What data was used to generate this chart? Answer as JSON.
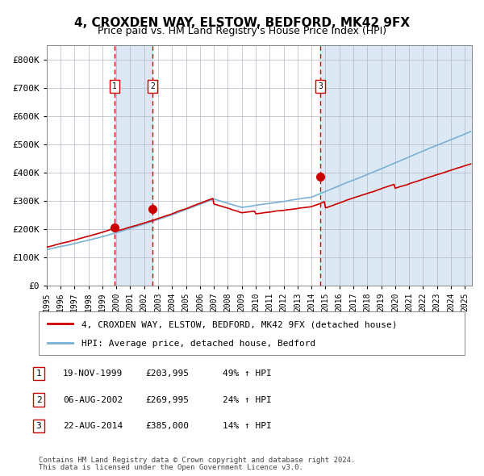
{
  "title": "4, CROXDEN WAY, ELSTOW, BEDFORD, MK42 9FX",
  "subtitle": "Price paid vs. HM Land Registry's House Price Index (HPI)",
  "legend_line1": "4, CROXDEN WAY, ELSTOW, BEDFORD, MK42 9FX (detached house)",
  "legend_line2": "HPI: Average price, detached house, Bedford",
  "transactions": [
    {
      "label": "1",
      "date": "19-NOV-1999",
      "price": 203995,
      "hpi_pct": "49% ↑ HPI",
      "x_year": 1999.88
    },
    {
      "label": "2",
      "date": "06-AUG-2002",
      "price": 269995,
      "hpi_pct": "24% ↑ HPI",
      "x_year": 2002.6
    },
    {
      "label": "3",
      "date": "22-AUG-2014",
      "price": 385000,
      "hpi_pct": "14% ↑ HPI",
      "x_year": 2014.64
    }
  ],
  "footer1": "Contains HM Land Registry data © Crown copyright and database right 2024.",
  "footer2": "This data is licensed under the Open Government Licence v3.0.",
  "hpi_color": "#7ab0d4",
  "price_color": "#cc0000",
  "marker_color": "#cc0000",
  "vline_color": "#cc0000",
  "shade_color": "#dce9f5",
  "grid_color": "#b0b8c8",
  "bg_color": "#ffffff",
  "ylim": [
    0,
    850000
  ],
  "xlim_start": 1995.0,
  "xlim_end": 2025.5
}
